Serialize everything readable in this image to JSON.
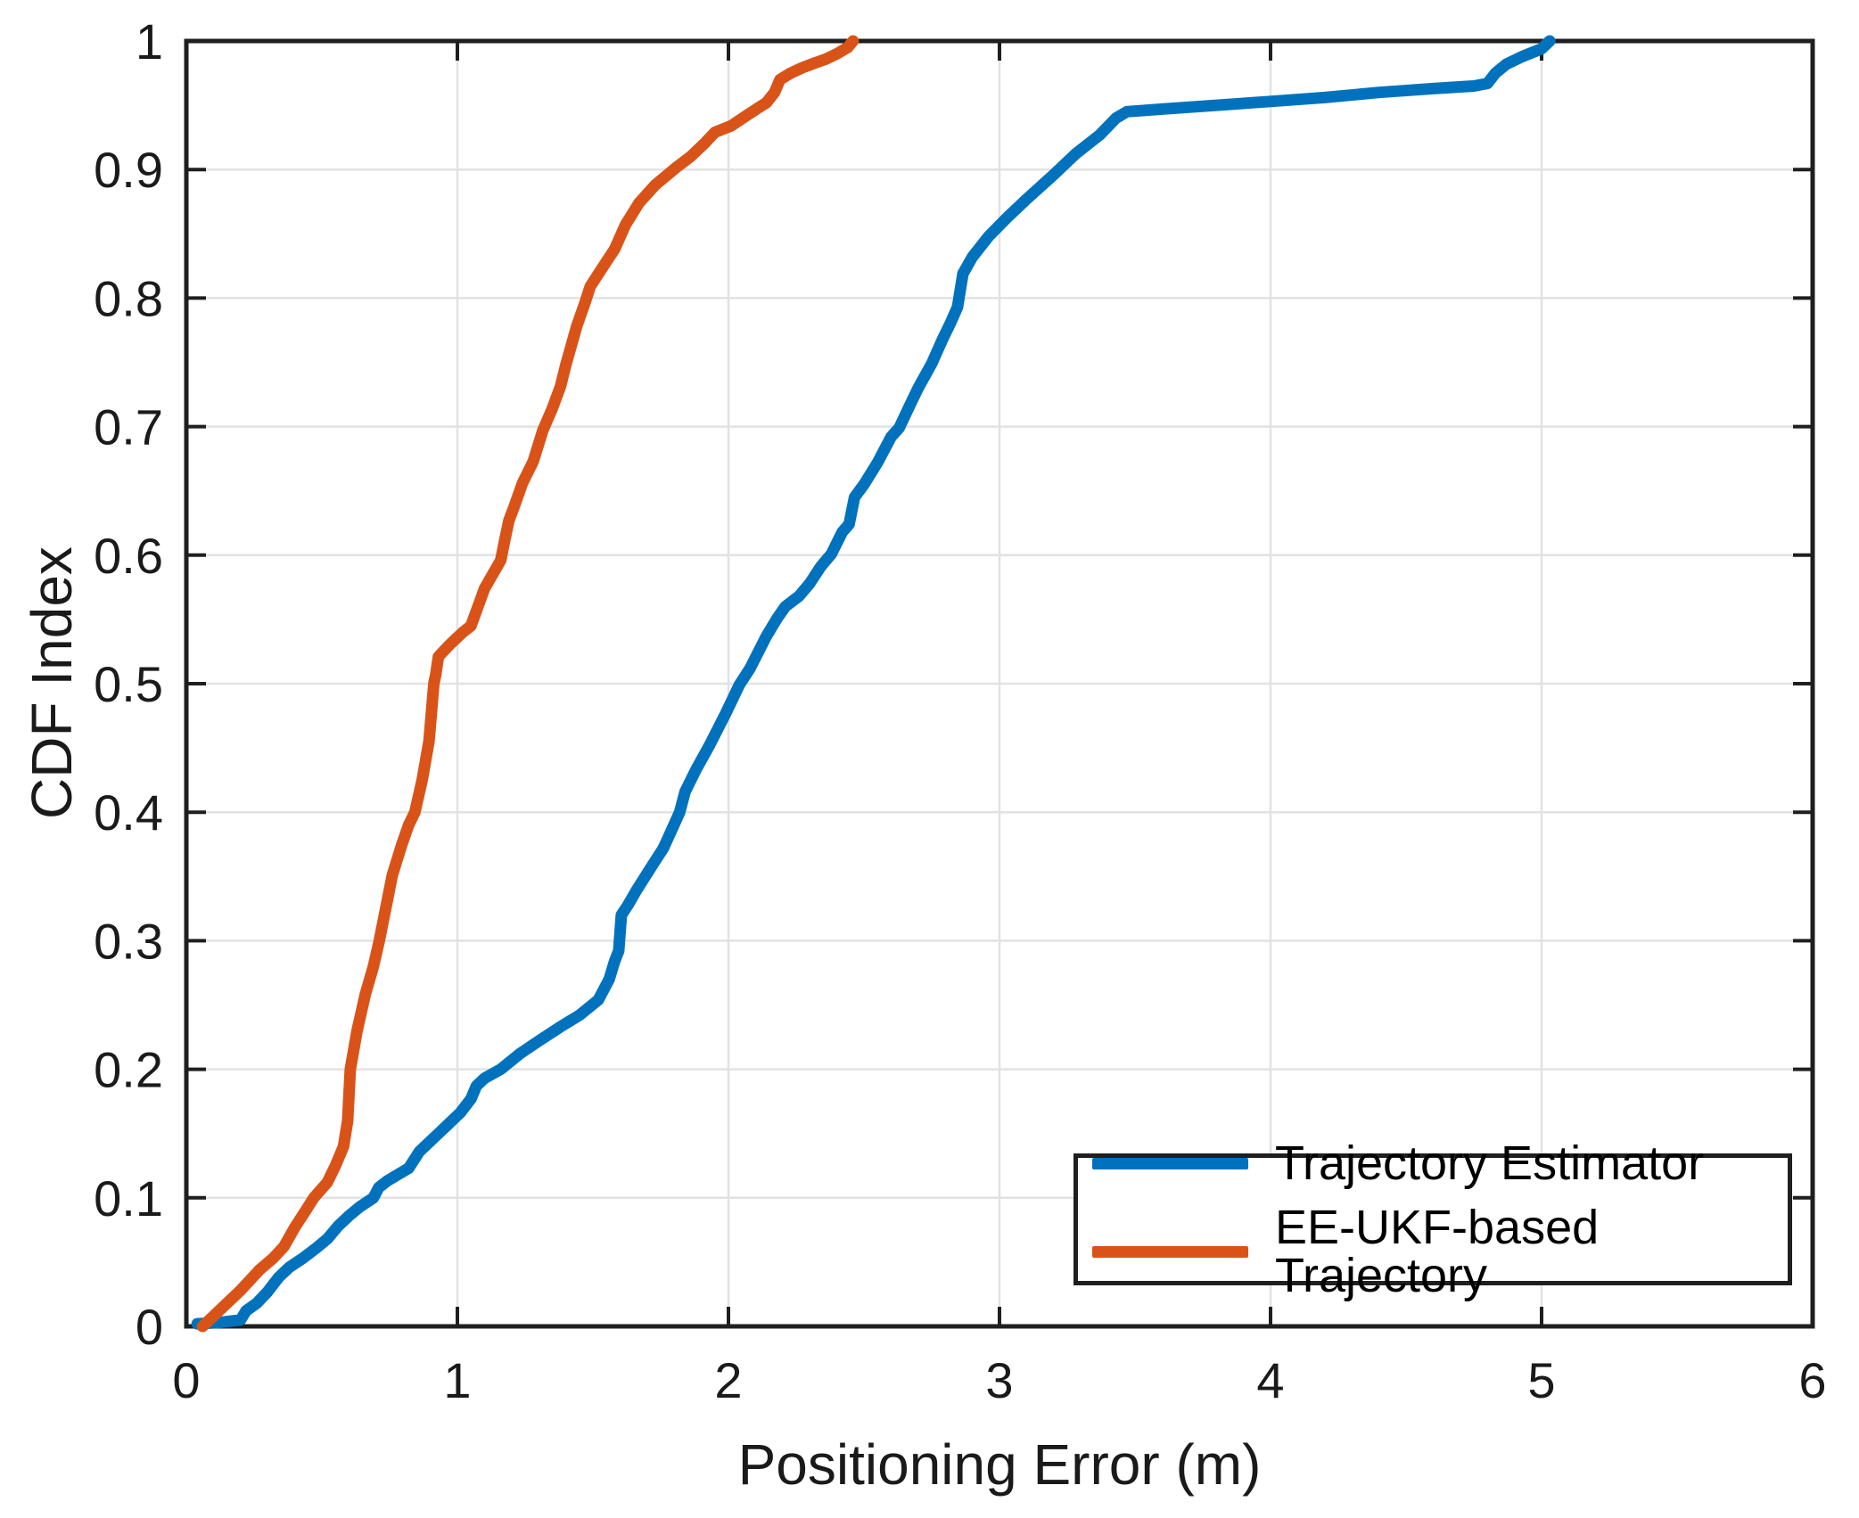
{
  "figure": {
    "background": "#ffffff"
  },
  "legend": {
    "entries": [
      {
        "label": "Trajectory Estimator",
        "color": "#0072BD"
      },
      {
        "label": "EE-UKF-based Trajectory",
        "color": "#D95319"
      }
    ]
  },
  "chart_data": {
    "type": "line",
    "title": "",
    "xlabel": "Positioning Error (m)",
    "ylabel": "CDF Index",
    "xlim": [
      0,
      6
    ],
    "ylim": [
      0,
      1
    ],
    "grid": true,
    "legend_position": "inside-bottom-right",
    "axis_color": "#1f1f1f",
    "grid_color": "#e2e2e2",
    "tick_label_color": "#1a1a1a",
    "xticks": {
      "values": [
        0,
        1,
        2,
        3,
        4,
        5,
        6
      ],
      "labels": [
        "0",
        "1",
        "2",
        "3",
        "4",
        "5",
        "6"
      ]
    },
    "yticks": {
      "values": [
        0,
        0.1,
        0.2,
        0.3,
        0.4,
        0.5,
        0.6,
        0.7,
        0.8,
        0.9,
        1
      ],
      "labels": [
        "0",
        "0.1",
        "0.2",
        "0.3",
        "0.4",
        "0.5",
        "0.6",
        "0.7",
        "0.8",
        "0.9",
        "1"
      ]
    },
    "series": [
      {
        "name": "Trajectory Estimator",
        "color": "#0072BD",
        "line_width": 13,
        "points": [
          [
            0.04,
            0.002
          ],
          [
            0.12,
            0.003
          ],
          [
            0.2,
            0.005
          ],
          [
            0.22,
            0.012
          ],
          [
            0.26,
            0.018
          ],
          [
            0.3,
            0.027
          ],
          [
            0.34,
            0.038
          ],
          [
            0.38,
            0.046
          ],
          [
            0.43,
            0.053
          ],
          [
            0.48,
            0.061
          ],
          [
            0.52,
            0.068
          ],
          [
            0.56,
            0.078
          ],
          [
            0.6,
            0.086
          ],
          [
            0.64,
            0.093
          ],
          [
            0.69,
            0.1
          ],
          [
            0.71,
            0.108
          ],
          [
            0.74,
            0.113
          ],
          [
            0.78,
            0.118
          ],
          [
            0.82,
            0.123
          ],
          [
            0.86,
            0.136
          ],
          [
            0.93,
            0.15
          ],
          [
            1.01,
            0.166
          ],
          [
            1.05,
            0.177
          ],
          [
            1.07,
            0.187
          ],
          [
            1.1,
            0.193
          ],
          [
            1.16,
            0.2
          ],
          [
            1.23,
            0.212
          ],
          [
            1.3,
            0.222
          ],
          [
            1.38,
            0.233
          ],
          [
            1.45,
            0.242
          ],
          [
            1.52,
            0.254
          ],
          [
            1.56,
            0.27
          ],
          [
            1.58,
            0.284
          ],
          [
            1.595,
            0.292
          ],
          [
            1.605,
            0.32
          ],
          [
            1.63,
            0.328
          ],
          [
            1.66,
            0.339
          ],
          [
            1.72,
            0.359
          ],
          [
            1.76,
            0.372
          ],
          [
            1.79,
            0.386
          ],
          [
            1.82,
            0.4
          ],
          [
            1.84,
            0.416
          ],
          [
            1.88,
            0.433
          ],
          [
            1.93,
            0.452
          ],
          [
            1.99,
            0.477
          ],
          [
            2.04,
            0.499
          ],
          [
            2.08,
            0.512
          ],
          [
            2.14,
            0.537
          ],
          [
            2.18,
            0.551
          ],
          [
            2.21,
            0.56
          ],
          [
            2.26,
            0.568
          ],
          [
            2.3,
            0.578
          ],
          [
            2.34,
            0.591
          ],
          [
            2.38,
            0.601
          ],
          [
            2.42,
            0.618
          ],
          [
            2.445,
            0.624
          ],
          [
            2.465,
            0.645
          ],
          [
            2.5,
            0.655
          ],
          [
            2.55,
            0.672
          ],
          [
            2.6,
            0.692
          ],
          [
            2.63,
            0.699
          ],
          [
            2.67,
            0.717
          ],
          [
            2.7,
            0.73
          ],
          [
            2.75,
            0.749
          ],
          [
            2.79,
            0.768
          ],
          [
            2.82,
            0.781
          ],
          [
            2.845,
            0.793
          ],
          [
            2.865,
            0.819
          ],
          [
            2.9,
            0.832
          ],
          [
            2.96,
            0.848
          ],
          [
            3.03,
            0.863
          ],
          [
            3.1,
            0.877
          ],
          [
            3.2,
            0.896
          ],
          [
            3.28,
            0.912
          ],
          [
            3.37,
            0.927
          ],
          [
            3.43,
            0.94
          ],
          [
            3.47,
            0.945
          ],
          [
            3.6,
            0.947
          ],
          [
            3.8,
            0.95
          ],
          [
            4.0,
            0.953
          ],
          [
            4.2,
            0.956
          ],
          [
            4.4,
            0.96
          ],
          [
            4.6,
            0.963
          ],
          [
            4.75,
            0.965
          ],
          [
            4.8,
            0.967
          ],
          [
            4.83,
            0.975
          ],
          [
            4.87,
            0.982
          ],
          [
            4.93,
            0.988
          ],
          [
            5.0,
            0.994
          ],
          [
            5.03,
            1.0
          ]
        ]
      },
      {
        "name": "EE-UKF-based Trajectory",
        "color": "#D95319",
        "line_width": 13,
        "points": [
          [
            0.06,
            0.0
          ],
          [
            0.1,
            0.008
          ],
          [
            0.15,
            0.018
          ],
          [
            0.2,
            0.028
          ],
          [
            0.27,
            0.044
          ],
          [
            0.32,
            0.053
          ],
          [
            0.36,
            0.062
          ],
          [
            0.4,
            0.077
          ],
          [
            0.44,
            0.09
          ],
          [
            0.47,
            0.1
          ],
          [
            0.52,
            0.112
          ],
          [
            0.55,
            0.125
          ],
          [
            0.58,
            0.14
          ],
          [
            0.595,
            0.16
          ],
          [
            0.605,
            0.2
          ],
          [
            0.63,
            0.23
          ],
          [
            0.66,
            0.258
          ],
          [
            0.69,
            0.28
          ],
          [
            0.712,
            0.3
          ],
          [
            0.74,
            0.33
          ],
          [
            0.76,
            0.351
          ],
          [
            0.795,
            0.375
          ],
          [
            0.82,
            0.39
          ],
          [
            0.843,
            0.4
          ],
          [
            0.87,
            0.425
          ],
          [
            0.895,
            0.455
          ],
          [
            0.9,
            0.467
          ],
          [
            0.913,
            0.5
          ],
          [
            0.92,
            0.507
          ],
          [
            0.93,
            0.521
          ],
          [
            0.97,
            0.53
          ],
          [
            1.02,
            0.54
          ],
          [
            1.05,
            0.545
          ],
          [
            1.1,
            0.574
          ],
          [
            1.13,
            0.585
          ],
          [
            1.16,
            0.596
          ],
          [
            1.175,
            0.612
          ],
          [
            1.19,
            0.627
          ],
          [
            1.21,
            0.638
          ],
          [
            1.24,
            0.656
          ],
          [
            1.28,
            0.673
          ],
          [
            1.315,
            0.697
          ],
          [
            1.35,
            0.714
          ],
          [
            1.38,
            0.731
          ],
          [
            1.4,
            0.748
          ],
          [
            1.42,
            0.763
          ],
          [
            1.44,
            0.778
          ],
          [
            1.47,
            0.796
          ],
          [
            1.49,
            0.809
          ],
          [
            1.53,
            0.822
          ],
          [
            1.58,
            0.838
          ],
          [
            1.62,
            0.857
          ],
          [
            1.67,
            0.874
          ],
          [
            1.73,
            0.888
          ],
          [
            1.81,
            0.902
          ],
          [
            1.86,
            0.91
          ],
          [
            1.91,
            0.92
          ],
          [
            1.95,
            0.929
          ],
          [
            2.01,
            0.934
          ],
          [
            2.06,
            0.941
          ],
          [
            2.11,
            0.948
          ],
          [
            2.14,
            0.952
          ],
          [
            2.17,
            0.96
          ],
          [
            2.19,
            0.97
          ],
          [
            2.23,
            0.975
          ],
          [
            2.27,
            0.979
          ],
          [
            2.32,
            0.983
          ],
          [
            2.36,
            0.986
          ],
          [
            2.4,
            0.99
          ],
          [
            2.44,
            0.995
          ],
          [
            2.46,
            1.0
          ]
        ]
      }
    ]
  }
}
